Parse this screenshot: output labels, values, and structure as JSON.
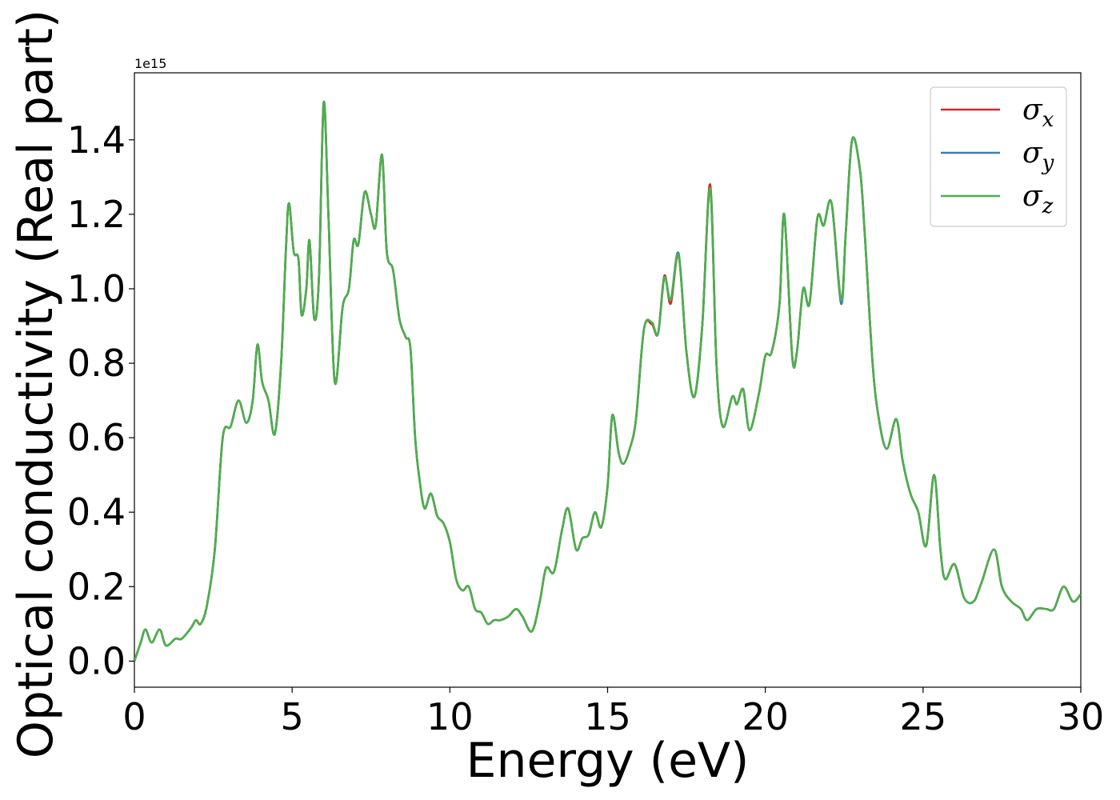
{
  "chart_data": {
    "type": "line",
    "xlabel": "Energy (eV)",
    "ylabel": "Optical conductivity (Real part)",
    "y_offset_text": "1e15",
    "y_scale_factor": 1000000000000000.0,
    "xlim": [
      0,
      30
    ],
    "ylim": [
      -0.07,
      1.58
    ],
    "xticks": [
      0,
      5,
      10,
      15,
      20,
      25,
      30
    ],
    "yticks": [
      0.0,
      0.2,
      0.4,
      0.6,
      0.8,
      1.0,
      1.2,
      1.4
    ],
    "xtick_labels": [
      "0",
      "5",
      "10",
      "15",
      "20",
      "25",
      "30"
    ],
    "ytick_labels": [
      "0.0",
      "0.2",
      "0.4",
      "0.6",
      "0.8",
      "1.0",
      "1.2",
      "1.4"
    ],
    "grid": false,
    "legend_position": "top-right",
    "series": [
      {
        "name": "σx",
        "base": "σ",
        "sub": "x",
        "color": "#d62728",
        "x": [],
        "y": []
      },
      {
        "name": "σy",
        "base": "σ",
        "sub": "y",
        "color": "#3a7fb5",
        "x": [],
        "y": []
      },
      {
        "name": "σz",
        "base": "σ",
        "sub": "z",
        "color": "#4daf4a",
        "x": [],
        "y": []
      }
    ],
    "points": [
      [
        0.0,
        0.0
      ],
      [
        0.2,
        0.05
      ],
      [
        0.35,
        0.085
      ],
      [
        0.55,
        0.05
      ],
      [
        0.8,
        0.085
      ],
      [
        1.0,
        0.042
      ],
      [
        1.3,
        0.06
      ],
      [
        1.5,
        0.06
      ],
      [
        1.8,
        0.09
      ],
      [
        1.95,
        0.11
      ],
      [
        2.1,
        0.1
      ],
      [
        2.3,
        0.15
      ],
      [
        2.55,
        0.3
      ],
      [
        2.8,
        0.6
      ],
      [
        3.05,
        0.63
      ],
      [
        3.3,
        0.7
      ],
      [
        3.55,
        0.64
      ],
      [
        3.75,
        0.7
      ],
      [
        3.9,
        0.85
      ],
      [
        4.05,
        0.75
      ],
      [
        4.25,
        0.7
      ],
      [
        4.45,
        0.61
      ],
      [
        4.65,
        0.8
      ],
      [
        4.8,
        1.1
      ],
      [
        4.9,
        1.23
      ],
      [
        5.05,
        1.1
      ],
      [
        5.2,
        1.08
      ],
      [
        5.3,
        0.93
      ],
      [
        5.45,
        1.0
      ],
      [
        5.55,
        1.13
      ],
      [
        5.7,
        0.92
      ],
      [
        5.85,
        1.03
      ],
      [
        6.0,
        1.5
      ],
      [
        6.15,
        1.2
      ],
      [
        6.35,
        0.75
      ],
      [
        6.6,
        0.95
      ],
      [
        6.8,
        1.0
      ],
      [
        6.95,
        1.13
      ],
      [
        7.1,
        1.12
      ],
      [
        7.3,
        1.26
      ],
      [
        7.5,
        1.2
      ],
      [
        7.65,
        1.17
      ],
      [
        7.85,
        1.36
      ],
      [
        8.0,
        1.1
      ],
      [
        8.2,
        1.05
      ],
      [
        8.4,
        0.92
      ],
      [
        8.6,
        0.87
      ],
      [
        8.75,
        0.84
      ],
      [
        8.9,
        0.6
      ],
      [
        9.05,
        0.48
      ],
      [
        9.2,
        0.41
      ],
      [
        9.4,
        0.45
      ],
      [
        9.6,
        0.39
      ],
      [
        9.8,
        0.37
      ],
      [
        10.0,
        0.32
      ],
      [
        10.2,
        0.22
      ],
      [
        10.4,
        0.19
      ],
      [
        10.6,
        0.2
      ],
      [
        10.8,
        0.14
      ],
      [
        11.0,
        0.13
      ],
      [
        11.2,
        0.1
      ],
      [
        11.4,
        0.11
      ],
      [
        11.6,
        0.11
      ],
      [
        11.85,
        0.12
      ],
      [
        12.1,
        0.14
      ],
      [
        12.3,
        0.12
      ],
      [
        12.6,
        0.08
      ],
      [
        12.85,
        0.16
      ],
      [
        13.05,
        0.25
      ],
      [
        13.3,
        0.24
      ],
      [
        13.55,
        0.35
      ],
      [
        13.75,
        0.41
      ],
      [
        14.0,
        0.3
      ],
      [
        14.2,
        0.33
      ],
      [
        14.4,
        0.34
      ],
      [
        14.6,
        0.4
      ],
      [
        14.8,
        0.36
      ],
      [
        15.0,
        0.47
      ],
      [
        15.15,
        0.66
      ],
      [
        15.35,
        0.56
      ],
      [
        15.5,
        0.53
      ],
      [
        15.7,
        0.57
      ],
      [
        15.9,
        0.65
      ],
      [
        16.15,
        0.89
      ],
      [
        16.4,
        0.91
      ],
      [
        16.6,
        0.88
      ],
      [
        16.8,
        1.03
      ],
      [
        17.0,
        0.97
      ],
      [
        17.25,
        1.09
      ],
      [
        17.5,
        0.83
      ],
      [
        17.75,
        0.71
      ],
      [
        18.0,
        0.9
      ],
      [
        18.25,
        1.27
      ],
      [
        18.45,
        0.8
      ],
      [
        18.65,
        0.63
      ],
      [
        18.95,
        0.71
      ],
      [
        19.1,
        0.69
      ],
      [
        19.3,
        0.73
      ],
      [
        19.5,
        0.62
      ],
      [
        19.8,
        0.72
      ],
      [
        20.0,
        0.82
      ],
      [
        20.2,
        0.83
      ],
      [
        20.45,
        0.96
      ],
      [
        20.6,
        1.2
      ],
      [
        20.85,
        0.82
      ],
      [
        21.0,
        0.83
      ],
      [
        21.2,
        1.0
      ],
      [
        21.4,
        0.96
      ],
      [
        21.65,
        1.19
      ],
      [
        21.85,
        1.17
      ],
      [
        22.1,
        1.23
      ],
      [
        22.4,
        0.97
      ],
      [
        22.55,
        1.15
      ],
      [
        22.75,
        1.4
      ],
      [
        23.0,
        1.32
      ],
      [
        23.15,
        1.15
      ],
      [
        23.4,
        0.8
      ],
      [
        23.6,
        0.65
      ],
      [
        23.85,
        0.57
      ],
      [
        24.15,
        0.65
      ],
      [
        24.35,
        0.54
      ],
      [
        24.6,
        0.45
      ],
      [
        24.85,
        0.4
      ],
      [
        25.1,
        0.31
      ],
      [
        25.35,
        0.5
      ],
      [
        25.55,
        0.3
      ],
      [
        25.7,
        0.22
      ],
      [
        26.0,
        0.26
      ],
      [
        26.3,
        0.17
      ],
      [
        26.6,
        0.16
      ],
      [
        26.85,
        0.21
      ],
      [
        27.25,
        0.3
      ],
      [
        27.5,
        0.2
      ],
      [
        27.8,
        0.16
      ],
      [
        28.1,
        0.14
      ],
      [
        28.3,
        0.11
      ],
      [
        28.6,
        0.14
      ],
      [
        28.9,
        0.14
      ],
      [
        29.15,
        0.14
      ],
      [
        29.45,
        0.2
      ],
      [
        29.75,
        0.16
      ],
      [
        30.0,
        0.18
      ]
    ],
    "deviations": {
      "σx": [
        [
          16.8,
          1.035
        ],
        [
          17.0,
          0.96
        ],
        [
          18.25,
          1.28
        ],
        [
          16.4,
          0.905
        ]
      ],
      "σy": [
        [
          17.25,
          1.095
        ],
        [
          22.4,
          0.96
        ]
      ]
    }
  }
}
